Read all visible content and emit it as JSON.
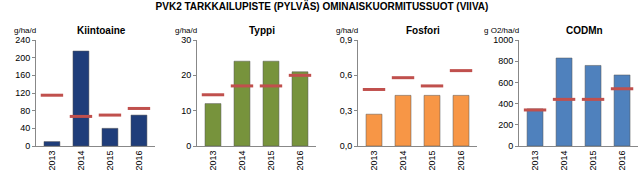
{
  "title": "PVK2 TARKKAILUPISTE (PYLVÄS) OMINAISKUORMITUSSUOT (VIIVA)",
  "chart_data": [
    {
      "type": "bar",
      "title": "Kiintoaine",
      "y_label": "g/ha/d",
      "categories": [
        "2013",
        "2014",
        "2015",
        "2016"
      ],
      "series": [
        {
          "type": "bar",
          "color": "#1f3d7a",
          "values": [
            10,
            215,
            40,
            70
          ]
        },
        {
          "type": "scatter",
          "marker": "dash",
          "color": "#c0504d",
          "values": [
            115,
            67,
            70,
            85
          ]
        }
      ],
      "ylim": [
        0,
        240
      ],
      "yticks": [
        0,
        40,
        80,
        120,
        160,
        200,
        240
      ],
      "grid": false
    },
    {
      "type": "bar",
      "title": "Typpi",
      "y_label": "g/ha/d",
      "categories": [
        "2013",
        "2014",
        "2015",
        "2016"
      ],
      "series": [
        {
          "type": "bar",
          "color": "#77933c",
          "values": [
            12,
            24,
            24,
            21
          ]
        },
        {
          "type": "scatter",
          "marker": "dash",
          "color": "#c0504d",
          "values": [
            14.5,
            17,
            17,
            20
          ]
        }
      ],
      "ylim": [
        0,
        30
      ],
      "yticks": [
        0,
        10,
        20,
        30
      ],
      "grid": false
    },
    {
      "type": "bar",
      "title": "Fosfori",
      "y_label": "g/ha/d",
      "categories": [
        "2013",
        "2014",
        "2015",
        "2016"
      ],
      "series": [
        {
          "type": "bar",
          "color": "#f79646",
          "values": [
            0.27,
            0.43,
            0.43,
            0.43
          ]
        },
        {
          "type": "scatter",
          "marker": "dash",
          "color": "#c0504d",
          "values": [
            0.48,
            0.58,
            0.51,
            0.64
          ]
        }
      ],
      "ylim": [
        0,
        0.9
      ],
      "yticks": [
        {
          "value": 0,
          "label": "0,0"
        },
        {
          "value": 0.3,
          "label": "0,3"
        },
        {
          "value": 0.6,
          "label": "0,6"
        },
        {
          "value": 0.9,
          "label": "0,9"
        }
      ],
      "grid": false
    },
    {
      "type": "bar",
      "title": "CODMn",
      "y_label": "g O2/ha/d",
      "categories": [
        "2013",
        "2014",
        "2015",
        "2016"
      ],
      "series": [
        {
          "type": "bar",
          "color": "#4f81bd",
          "values": [
            350,
            830,
            760,
            670
          ]
        },
        {
          "type": "scatter",
          "marker": "dash",
          "color": "#c0504d",
          "values": [
            340,
            440,
            440,
            540
          ]
        }
      ],
      "ylim": [
        0,
        1000
      ],
      "yticks": [
        0,
        200,
        400,
        600,
        800,
        1000
      ],
      "grid": false
    }
  ]
}
